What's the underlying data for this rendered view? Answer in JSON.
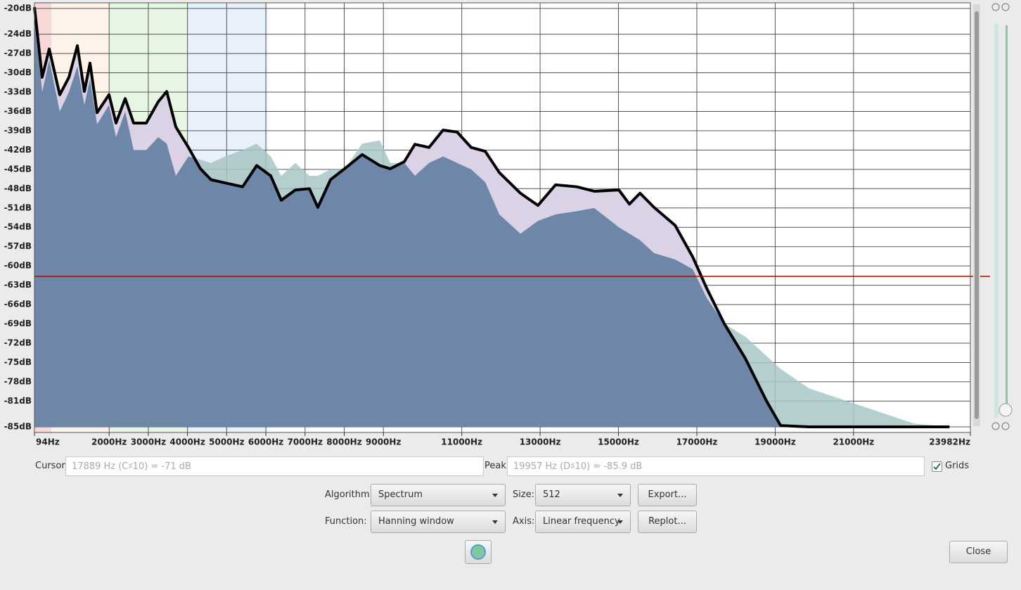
{
  "chart_data": {
    "type": "line",
    "x": [
      94,
      291,
      471,
      740,
      974,
      1189,
      1368,
      1512,
      1692,
      1997,
      2176,
      2410,
      2625,
      2948,
      3253,
      3469,
      3702,
      4025,
      4330,
      4599,
      4958,
      5407,
      5766,
      6125,
      6394,
      6753,
      7112,
      7327,
      7651,
      8010,
      8458,
      8907,
      9176,
      9535,
      9805,
      10164,
      10523,
      10882,
      11241,
      11600,
      11959,
      12497,
      12946,
      13395,
      13933,
      14382,
      15010,
      15280,
      15549,
      15908,
      16446,
      16895,
      17254,
      17703,
      18241,
      18780,
      19139,
      19857,
      22550,
      23448
    ],
    "series": [
      {
        "color": "#000000",
        "values": [
          -19.8,
          -30.7,
          -26.3,
          -33.4,
          -30.7,
          -25.8,
          -32.9,
          -28.5,
          -36.2,
          -33.4,
          -37.8,
          -34.0,
          -37.8,
          -37.8,
          -34.5,
          -32.9,
          -38.4,
          -41.6,
          -44.9,
          -46.6,
          -47.1,
          -47.7,
          -44.4,
          -46.0,
          -49.8,
          -48.2,
          -48.0,
          -50.9,
          -46.6,
          -44.9,
          -42.7,
          -44.4,
          -44.9,
          -43.8,
          -41.1,
          -41.6,
          -38.9,
          -39.2,
          -41.6,
          -42.2,
          -45.5,
          -48.7,
          -50.6,
          -47.4,
          -47.7,
          -48.4,
          -48.2,
          -50.4,
          -48.7,
          -50.9,
          -53.7,
          -58.6,
          -63.5,
          -69.0,
          -74.4,
          -81.0,
          -84.8,
          -85,
          -85,
          -85
        ]
      },
      {
        "color": "#a8c5c5",
        "values": [
          -20,
          -33,
          -28,
          -36,
          -33,
          -29,
          -35,
          -31,
          -38,
          -35,
          -40,
          -36,
          -42,
          -42,
          -40,
          -41,
          -46,
          -43,
          -43.5,
          -44,
          -43,
          -42,
          -41,
          -43,
          -46,
          -44,
          -46,
          -46,
          -45,
          -45,
          -41,
          -40.5,
          -44,
          -44,
          -46,
          -44,
          -43,
          -44,
          -45,
          -47,
          -52,
          -55,
          -53,
          -52,
          -51.5,
          -51,
          -54,
          -55,
          -56,
          -58,
          -59,
          -60.5,
          -65,
          -69,
          -71,
          -74,
          -76,
          -79,
          -84.5,
          -85
        ]
      }
    ],
    "xlim": [
      94,
      23982
    ],
    "xticks": [
      {
        "value": 94,
        "label": "94Hz"
      },
      {
        "value": 2000,
        "label": "2000Hz"
      },
      {
        "value": 3000,
        "label": "3000Hz"
      },
      {
        "value": 4000,
        "label": "4000Hz"
      },
      {
        "value": 5000,
        "label": "5000Hz"
      },
      {
        "value": 6000,
        "label": "6000Hz"
      },
      {
        "value": 7000,
        "label": "7000Hz"
      },
      {
        "value": 8000,
        "label": "8000Hz"
      },
      {
        "value": 9000,
        "label": "9000Hz"
      },
      {
        "value": 11000,
        "label": "11000Hz"
      },
      {
        "value": 13000,
        "label": "13000Hz"
      },
      {
        "value": 15000,
        "label": "15000Hz"
      },
      {
        "value": 17000,
        "label": "17000Hz"
      },
      {
        "value": 19000,
        "label": "19000Hz"
      },
      {
        "value": 21000,
        "label": "21000Hz"
      },
      {
        "value": 23982,
        "label": "23982Hz"
      }
    ],
    "ylim": [
      -85,
      -20
    ],
    "yticks": [
      {
        "value": -20,
        "label": "-20dB"
      },
      {
        "value": -24,
        "label": "-24dB"
      },
      {
        "value": -27,
        "label": "-27dB"
      },
      {
        "value": -30,
        "label": "-30dB"
      },
      {
        "value": -33,
        "label": "-33dB"
      },
      {
        "value": -36,
        "label": "-36dB"
      },
      {
        "value": -39,
        "label": "-39dB"
      },
      {
        "value": -42,
        "label": "-42dB"
      },
      {
        "value": -45,
        "label": "-45dB"
      },
      {
        "value": -48,
        "label": "-48dB"
      },
      {
        "value": -51,
        "label": "-51dB"
      },
      {
        "value": -54,
        "label": "-54dB"
      },
      {
        "value": -57,
        "label": "-57dB"
      },
      {
        "value": -60,
        "label": "-60dB"
      },
      {
        "value": -63,
        "label": "-63dB"
      },
      {
        "value": -66,
        "label": "-66dB"
      },
      {
        "value": -69,
        "label": "-69dB"
      },
      {
        "value": -72,
        "label": "-72dB"
      },
      {
        "value": -75,
        "label": "-75dB"
      },
      {
        "value": -78,
        "label": "-78dB"
      },
      {
        "value": -81,
        "label": "-81dB"
      },
      {
        "value": -85,
        "label": "-85dB"
      }
    ],
    "grid": true
  },
  "controls": {
    "cursor_label": "Cursor:",
    "cursor_value": "17889 Hz (C♯10) = -71 dB",
    "peak_label": "Peak:",
    "peak_value": "19957 Hz (D♯10) = -85.9 dB",
    "grids": "Grids",
    "algorithm_label": "Algorithm:",
    "algorithm": "Spectrum",
    "size_label": "Size:",
    "size": "512",
    "export": "Export...",
    "function_label": "Function:",
    "function": "Hanning window",
    "axis_label": "Axis:",
    "axis": "Linear frequency",
    "replot": "Replot...",
    "close": "Close"
  }
}
